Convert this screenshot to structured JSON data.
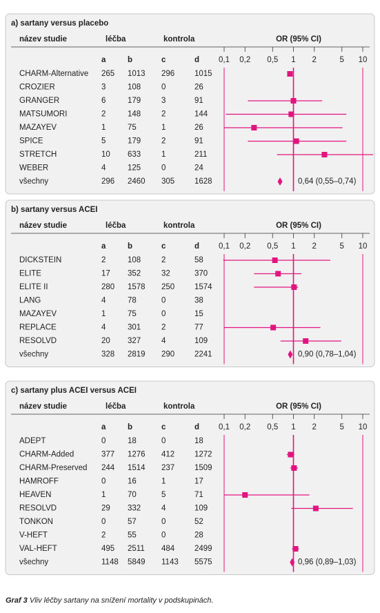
{
  "chart_data": [
    {
      "type": "forest",
      "title": "a) sartany versus placebo",
      "headers": {
        "study": "název studie",
        "treatment": "léčba",
        "control": "kontrola",
        "or": "OR (95% CI)"
      },
      "columns": [
        "a",
        "b",
        "c",
        "d"
      ],
      "xlim": [
        0.1,
        10
      ],
      "log_scale": true,
      "color": "#e2147f",
      "xticks": [
        {
          "value": 0.1,
          "label": "0,1"
        },
        {
          "value": 0.2,
          "label": "0,2"
        },
        {
          "value": 0.5,
          "label": "0,5"
        },
        1,
        2,
        5,
        10
      ],
      "rows": [
        {
          "study": "CHARM-Alternative",
          "a": 265,
          "b": 1013,
          "c": 296,
          "d": 1015,
          "or": 0.89,
          "ci_low": 0.84,
          "ci_high": 0.95
        },
        {
          "study": "CROZIER",
          "a": 3,
          "b": 108,
          "c": 0,
          "d": 26,
          "or": null,
          "ci_low": null,
          "ci_high": null
        },
        {
          "study": "GRANGER",
          "a": 6,
          "b": 179,
          "c": 3,
          "d": 91,
          "or": 1.0,
          "ci_low": 0.22,
          "ci_high": 2.6
        },
        {
          "study": "MATSUMORI",
          "a": 2,
          "b": 148,
          "c": 2,
          "d": 144,
          "or": 0.93,
          "ci_low": 0.106,
          "ci_high": 5.8
        },
        {
          "study": "MAZAYEV",
          "a": 1,
          "b": 75,
          "c": 1,
          "d": 26,
          "or": 0.27,
          "ci_low": 0.1,
          "ci_high": 5.1
        },
        {
          "study": "SPICE",
          "a": 5,
          "b": 179,
          "c": 2,
          "d": 91,
          "or": 1.1,
          "ci_low": 0.22,
          "ci_high": 5.8
        },
        {
          "study": "STRETCH",
          "a": 10,
          "b": 633,
          "c": 1,
          "d": 211,
          "or": 2.8,
          "ci_low": 0.58,
          "ci_high": 14.3
        },
        {
          "study": "WEBER",
          "a": 4,
          "b": 125,
          "c": 0,
          "d": 24,
          "or": null,
          "ci_low": null,
          "ci_high": null
        }
      ],
      "pooled": {
        "study": "všechny",
        "a": 296,
        "b": 2460,
        "c": 305,
        "d": 1628,
        "or": 0.64,
        "ci_low": 0.55,
        "ci_high": 0.74,
        "value_label": "0,64 (0,55–0,74)"
      }
    },
    {
      "type": "forest",
      "title": "b) sartany versus ACEI",
      "headers": {
        "study": "název studie",
        "treatment": "léčba",
        "control": "kontrola",
        "or": "OR (95% CI)"
      },
      "columns": [
        "a",
        "b",
        "c",
        "d"
      ],
      "xlim": [
        0.1,
        10
      ],
      "log_scale": true,
      "color": "#e2147f",
      "xticks": [
        {
          "value": 0.1,
          "label": "0,1"
        },
        {
          "value": 0.2,
          "label": "0,2"
        },
        {
          "value": 0.5,
          "label": "0,5"
        },
        1,
        2,
        5,
        10
      ],
      "rows": [
        {
          "study": "DICKSTEIN",
          "a": 2,
          "b": 108,
          "c": 2,
          "d": 58,
          "or": 0.54,
          "ci_low": 0.097,
          "ci_high": 3.4
        },
        {
          "study": "ELITE",
          "a": 17,
          "b": 352,
          "c": 32,
          "d": 370,
          "or": 0.6,
          "ci_low": 0.27,
          "ci_high": 1.3
        },
        {
          "study": "ELITE II",
          "a": 280,
          "b": 1578,
          "c": 250,
          "d": 1574,
          "or": 1.02,
          "ci_low": 0.27,
          "ci_high": 1.17
        },
        {
          "study": "LANG",
          "a": 4,
          "b": 78,
          "c": 0,
          "d": 38,
          "or": null,
          "ci_low": null,
          "ci_high": null
        },
        {
          "study": "MAZAYEV",
          "a": 1,
          "b": 75,
          "c": 0,
          "d": 15,
          "or": null,
          "ci_low": null,
          "ci_high": null
        },
        {
          "study": "REPLACE",
          "a": 4,
          "b": 301,
          "c": 2,
          "d": 77,
          "or": 0.51,
          "ci_low": 0.1,
          "ci_high": 2.45
        },
        {
          "study": "RESOLVD",
          "a": 20,
          "b": 327,
          "c": 4,
          "d": 109,
          "or": 1.5,
          "ci_low": 0.65,
          "ci_high": 4.9
        }
      ],
      "pooled": {
        "study": "všechny",
        "a": 328,
        "b": 2819,
        "c": 290,
        "d": 2241,
        "or": 0.9,
        "ci_low": 0.78,
        "ci_high": 1.04,
        "value_label": "0,90 (0,78–1,04)"
      }
    },
    {
      "type": "forest",
      "title": "c) sartany plus ACEI versus ACEI",
      "headers": {
        "study": "název studie",
        "treatment": "léčba",
        "control": "kontrola",
        "or": "OR (95% CI)"
      },
      "columns": [
        "a",
        "b",
        "c",
        "d"
      ],
      "xlim": [
        0.1,
        10
      ],
      "log_scale": true,
      "color": "#e2147f",
      "xticks": [
        {
          "value": 0.1,
          "label": "0,1"
        },
        {
          "value": 0.2,
          "label": "0,2"
        },
        {
          "value": 0.5,
          "label": "0,5"
        },
        1,
        2,
        5,
        10
      ],
      "rows": [
        {
          "study": "ADEPT",
          "a": 0,
          "b": 18,
          "c": 0,
          "d": 18,
          "or": null,
          "ci_low": null,
          "ci_high": null
        },
        {
          "study": "CHARM-Added",
          "a": 377,
          "b": 1276,
          "c": 412,
          "d": 1272,
          "or": 0.91,
          "ci_low": 0.8,
          "ci_high": 1.03
        },
        {
          "study": "CHARM-Preserved",
          "a": 244,
          "b": 1514,
          "c": 237,
          "d": 1509,
          "or": 1.02,
          "ci_low": 0.9,
          "ci_high": 1.16
        },
        {
          "study": "HAMROFF",
          "a": 0,
          "b": 16,
          "c": 1,
          "d": 17,
          "or": null,
          "ci_low": null,
          "ci_high": null
        },
        {
          "study": "HEAVEN",
          "a": 1,
          "b": 70,
          "c": 5,
          "d": 71,
          "or": 0.2,
          "ci_low": 0.1,
          "ci_high": 1.7
        },
        {
          "study": "RESOLVD",
          "a": 29,
          "b": 332,
          "c": 4,
          "d": 109,
          "or": 2.1,
          "ci_low": 0.93,
          "ci_high": 7.2
        },
        {
          "study": "TONKON",
          "a": 0,
          "b": 57,
          "c": 0,
          "d": 52,
          "or": null,
          "ci_low": null,
          "ci_high": null
        },
        {
          "study": "V-HEFT",
          "a": 2,
          "b": 55,
          "c": 0,
          "d": 28,
          "or": null,
          "ci_low": null,
          "ci_high": null
        },
        {
          "study": "VAL-HEFT",
          "a": 495,
          "b": 2511,
          "c": 484,
          "d": 2499,
          "or": 1.07,
          "ci_low": 0.95,
          "ci_high": 1.2
        }
      ],
      "pooled": {
        "study": "všechny",
        "a": 1148,
        "b": 5849,
        "c": 1143,
        "d": 5575,
        "or": 0.96,
        "ci_low": 0.89,
        "ci_high": 1.03,
        "value_label": "0,96 (0,89–1,03)"
      }
    }
  ],
  "caption": {
    "label": "Graf 3",
    "text": "Vliv léčby sartany na snížení mortality v podskupinách."
  }
}
